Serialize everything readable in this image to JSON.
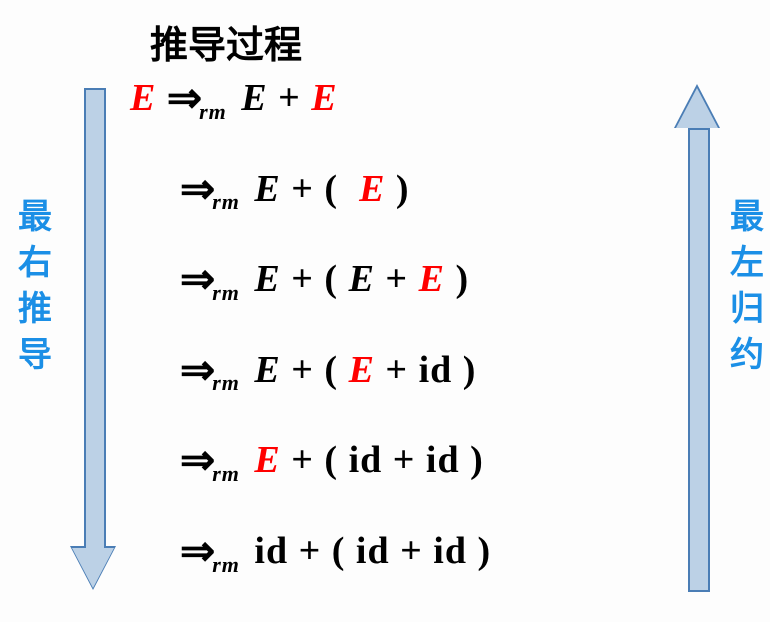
{
  "title": "推导过程",
  "colors": {
    "accent_blue": "#1b8fe6",
    "arrow_fill": "#bcd1e6",
    "arrow_stroke": "#4a7db5",
    "highlight": "#ff0000",
    "text": "#000000",
    "background": "#fdfdfd"
  },
  "typography": {
    "title_fontsize": 38,
    "body_fontsize": 38,
    "subscript_fontsize": 22,
    "label_fontsize": 34,
    "italic": true,
    "bold": true,
    "font_family": "Times New Roman / SimSun"
  },
  "labels": {
    "left_c1": "最",
    "left_c2": "右",
    "left_c3": "推",
    "left_c4": "导",
    "right_c1": "最",
    "right_c2": "左",
    "right_c3": "归",
    "right_c4": "约"
  },
  "arrows": {
    "left_direction": "down",
    "right_direction": "up",
    "shaft_width": 18,
    "head_width": 42,
    "head_height": 40,
    "length": 500
  },
  "sym": {
    "derives": "⇒",
    "rm": "rm",
    "E": "E",
    "plus": "+",
    "lp": "(",
    "rp": ")",
    "id": "id",
    "sp": " "
  },
  "derivation": {
    "type": "grammar-derivation",
    "lines": [
      {
        "indent": false,
        "tokens": [
          {
            "t": "E",
            "c": "red"
          },
          {
            "t": "sp"
          },
          {
            "t": "derives",
            "c": "black"
          },
          {
            "t": "rm",
            "c": "black"
          },
          {
            "t": "sp"
          },
          {
            "t": "E",
            "c": "black"
          },
          {
            "t": "sp"
          },
          {
            "t": "plus",
            "c": "black"
          },
          {
            "t": "sp"
          },
          {
            "t": "E",
            "c": "red"
          }
        ]
      },
      {
        "indent": true,
        "tokens": [
          {
            "t": "derives",
            "c": "black"
          },
          {
            "t": "rm",
            "c": "black"
          },
          {
            "t": "sp"
          },
          {
            "t": "E",
            "c": "black"
          },
          {
            "t": "sp"
          },
          {
            "t": "plus",
            "c": "black"
          },
          {
            "t": "sp"
          },
          {
            "t": "lp",
            "c": "black"
          },
          {
            "t": "sp"
          },
          {
            "t": "sp"
          },
          {
            "t": "E",
            "c": "red"
          },
          {
            "t": "sp"
          },
          {
            "t": "rp",
            "c": "black"
          }
        ]
      },
      {
        "indent": true,
        "tokens": [
          {
            "t": "derives",
            "c": "black"
          },
          {
            "t": "rm",
            "c": "black"
          },
          {
            "t": "sp"
          },
          {
            "t": "E",
            "c": "black"
          },
          {
            "t": "sp"
          },
          {
            "t": "plus",
            "c": "black"
          },
          {
            "t": "sp"
          },
          {
            "t": "lp",
            "c": "black"
          },
          {
            "t": "sp"
          },
          {
            "t": "E",
            "c": "black"
          },
          {
            "t": "sp"
          },
          {
            "t": "plus",
            "c": "black"
          },
          {
            "t": "sp"
          },
          {
            "t": "E",
            "c": "red"
          },
          {
            "t": "sp"
          },
          {
            "t": "rp",
            "c": "black"
          }
        ]
      },
      {
        "indent": true,
        "tokens": [
          {
            "t": "derives",
            "c": "black"
          },
          {
            "t": "rm",
            "c": "black"
          },
          {
            "t": "sp"
          },
          {
            "t": "E",
            "c": "black"
          },
          {
            "t": "sp"
          },
          {
            "t": "plus",
            "c": "black"
          },
          {
            "t": "sp"
          },
          {
            "t": "lp",
            "c": "black"
          },
          {
            "t": "sp"
          },
          {
            "t": "E",
            "c": "red"
          },
          {
            "t": "sp"
          },
          {
            "t": "plus",
            "c": "black"
          },
          {
            "t": "sp"
          },
          {
            "t": "id",
            "c": "black"
          },
          {
            "t": "sp"
          },
          {
            "t": "rp",
            "c": "black"
          }
        ]
      },
      {
        "indent": true,
        "tokens": [
          {
            "t": "derives",
            "c": "black"
          },
          {
            "t": "rm",
            "c": "black"
          },
          {
            "t": "sp"
          },
          {
            "t": "E",
            "c": "red"
          },
          {
            "t": "sp"
          },
          {
            "t": "plus",
            "c": "black"
          },
          {
            "t": "sp"
          },
          {
            "t": "lp",
            "c": "black"
          },
          {
            "t": "sp"
          },
          {
            "t": "id",
            "c": "black"
          },
          {
            "t": "sp"
          },
          {
            "t": "plus",
            "c": "black"
          },
          {
            "t": "sp"
          },
          {
            "t": "id",
            "c": "black"
          },
          {
            "t": "sp"
          },
          {
            "t": "rp",
            "c": "black"
          }
        ]
      },
      {
        "indent": true,
        "tokens": [
          {
            "t": "derives",
            "c": "black"
          },
          {
            "t": "rm",
            "c": "black"
          },
          {
            "t": "sp"
          },
          {
            "t": "id",
            "c": "black"
          },
          {
            "t": "sp"
          },
          {
            "t": "plus",
            "c": "black"
          },
          {
            "t": "sp"
          },
          {
            "t": "lp",
            "c": "black"
          },
          {
            "t": "sp"
          },
          {
            "t": "id",
            "c": "black"
          },
          {
            "t": "sp"
          },
          {
            "t": "plus",
            "c": "black"
          },
          {
            "t": "sp"
          },
          {
            "t": "id",
            "c": "black"
          },
          {
            "t": "sp"
          },
          {
            "t": "rp",
            "c": "black"
          }
        ]
      }
    ]
  }
}
